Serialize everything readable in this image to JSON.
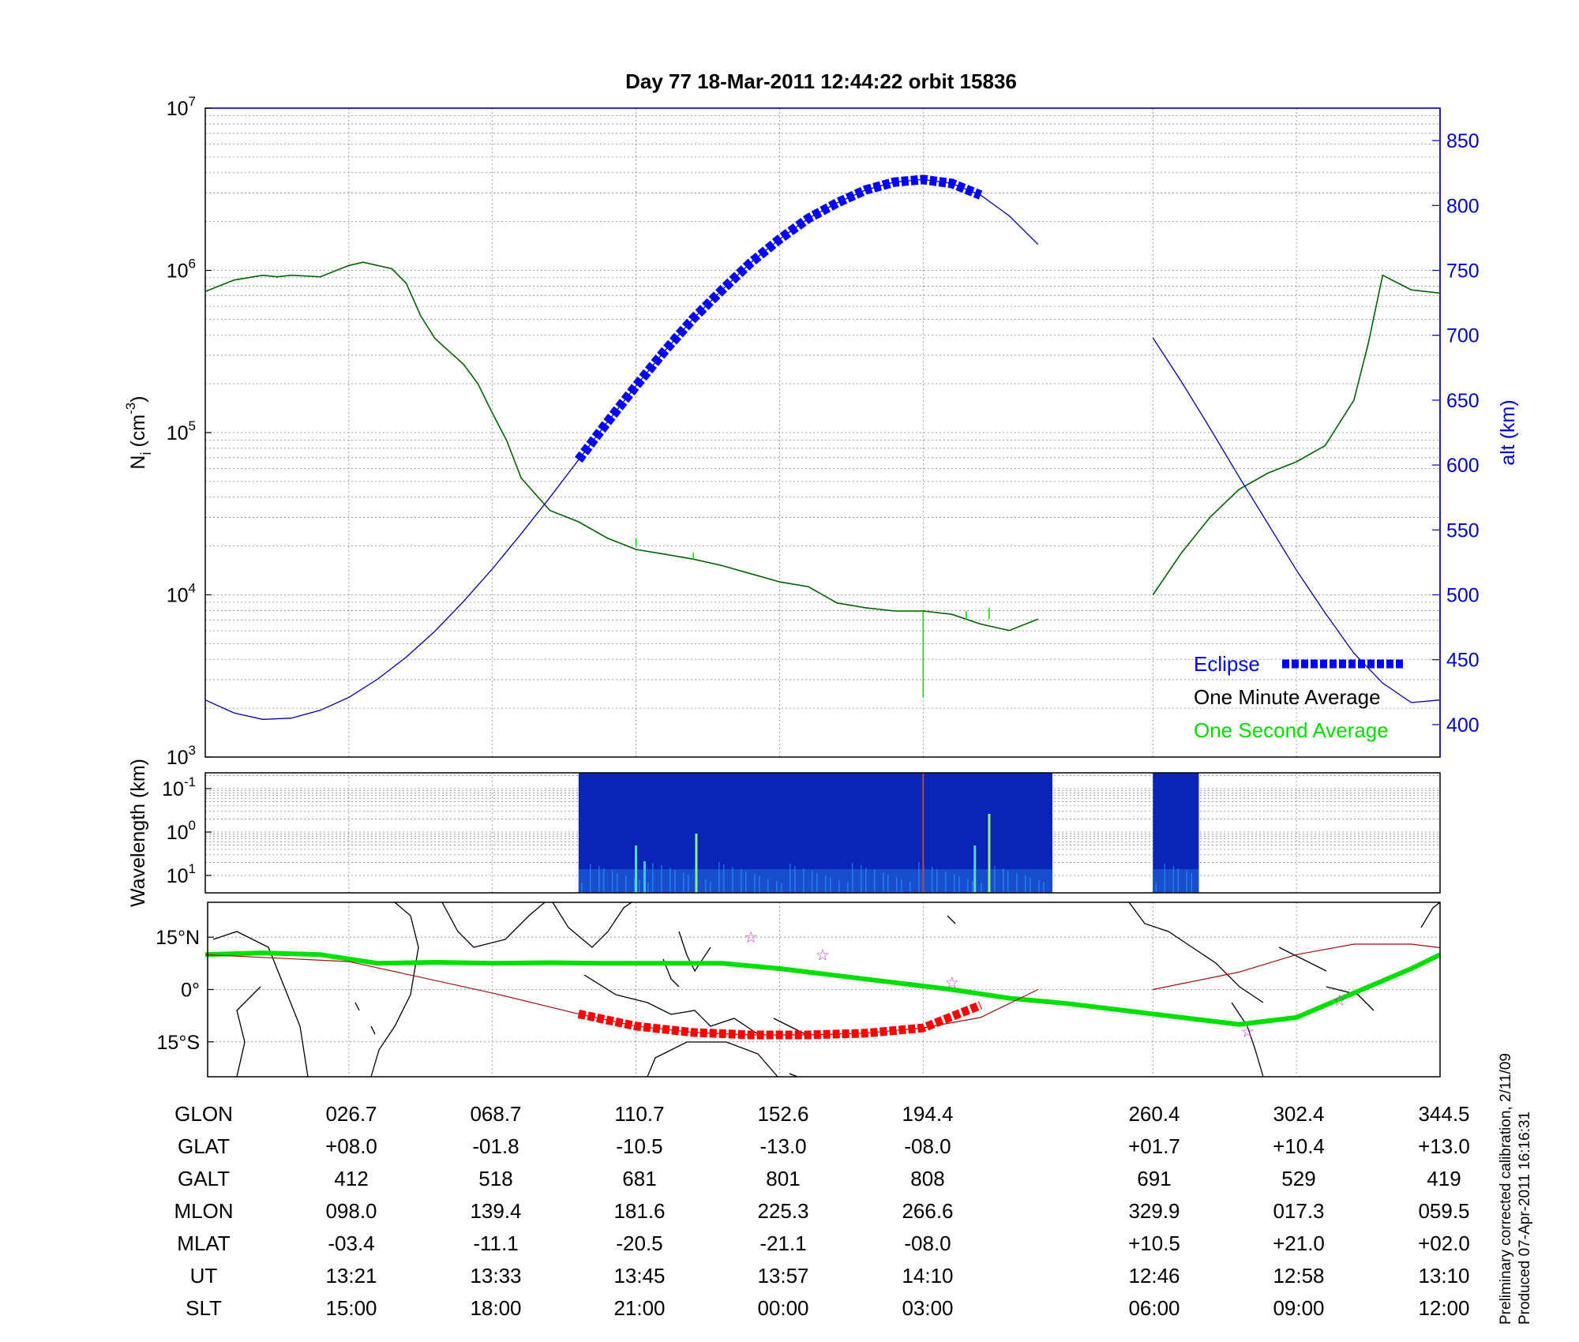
{
  "title": "Day 77  18-Mar-2011 12:44:22   orbit 15836",
  "colors": {
    "eclipse": "#0000ff",
    "minute_avg": "#006400",
    "second_avg": "#00e000",
    "altitude": "#0000aa",
    "track_eclipse": "#ff0000",
    "magnetic_equator": "#00e000",
    "star": "#cc33cc"
  },
  "chart_data": [
    {
      "type": "line",
      "ylabel": "N_i (cm^-3)",
      "ylabel_main": "N",
      "ylabel_sub": "i",
      "ylabel_unit": "(cm",
      "ylabel_exp": "-3",
      "ylabel_close": ")",
      "y_scale": "log",
      "ylim": [
        1000,
        10000000
      ],
      "y_ticks": [
        {
          "base": "10",
          "exp": "3",
          "v": 3
        },
        {
          "base": "10",
          "exp": "4",
          "v": 4
        },
        {
          "base": "10",
          "exp": "5",
          "v": 5
        },
        {
          "base": "10",
          "exp": "6",
          "v": 6
        },
        {
          "base": "10",
          "exp": "7",
          "v": 7
        }
      ],
      "y2label": "alt (km)",
      "y2lim": [
        375,
        875
      ],
      "y2_ticks": [
        "400",
        "450",
        "500",
        "550",
        "600",
        "650",
        "700",
        "750",
        "800",
        "850"
      ],
      "xlim": [
        0,
        43
      ],
      "x_grid": [
        5,
        10,
        15,
        20,
        25,
        33,
        38,
        43
      ],
      "grid": true,
      "legend_position": "bottom-right",
      "legend": [
        "Eclipse",
        "One Minute Average",
        "One Second Average"
      ],
      "series": [
        {
          "name": "One Minute Average",
          "x": [
            0,
            1,
            2,
            2.5,
            3,
            4,
            5,
            5.5,
            6,
            6.5,
            7,
            7.5,
            8,
            8.5,
            9,
            9.5,
            10,
            10.5,
            11,
            12,
            13,
            14,
            15,
            16,
            17,
            18,
            19,
            20,
            21,
            22,
            23,
            24,
            25,
            26,
            27,
            28,
            29
          ],
          "y": [
            5.87,
            5.94,
            5.97,
            5.96,
            5.97,
            5.96,
            6.03,
            6.05,
            6.03,
            6.01,
            5.92,
            5.72,
            5.58,
            5.5,
            5.42,
            5.3,
            5.12,
            4.95,
            4.72,
            4.52,
            4.45,
            4.35,
            4.28,
            4.25,
            4.22,
            4.18,
            4.13,
            4.08,
            4.05,
            3.95,
            3.92,
            3.9,
            3.9,
            3.88,
            3.82,
            3.78,
            3.85
          ]
        },
        {
          "name": "One Minute Average",
          "x": [
            33,
            34,
            35,
            36,
            37,
            38,
            39,
            40,
            40.5,
            41,
            42,
            43
          ],
          "y": [
            4.0,
            4.26,
            4.48,
            4.65,
            4.75,
            4.82,
            4.92,
            5.2,
            5.55,
            5.97,
            5.88,
            5.86
          ]
        },
        {
          "name": "Altitude",
          "axis": "y2",
          "x": [
            0,
            1,
            2,
            3,
            4,
            5,
            6,
            7,
            8,
            9,
            10,
            11,
            12,
            13,
            14,
            15,
            16,
            17,
            18,
            19,
            20,
            21,
            22,
            23,
            24,
            25,
            26,
            27,
            28,
            29
          ],
          "y": [
            419,
            409,
            404,
            405,
            411,
            421,
            435,
            452,
            472,
            495,
            520,
            547,
            575,
            604,
            633,
            661,
            688,
            713,
            735,
            756,
            774,
            790,
            802,
            812,
            818,
            820,
            817,
            808,
            792,
            770
          ]
        },
        {
          "name": "Altitude",
          "axis": "y2",
          "x": [
            33,
            34,
            35,
            36,
            37,
            38,
            39,
            40,
            41,
            42,
            43
          ],
          "y": [
            698,
            664,
            628,
            591,
            555,
            519,
            486,
            455,
            432,
            417,
            419
          ]
        },
        {
          "name": "Eclipse",
          "axis": "y2",
          "x": [
            13,
            14,
            15,
            16,
            17,
            18,
            19,
            20,
            21,
            22,
            23,
            24,
            25,
            26,
            27
          ],
          "y": [
            604,
            633,
            661,
            688,
            713,
            735,
            756,
            774,
            790,
            802,
            812,
            818,
            820,
            817,
            808
          ]
        }
      ]
    },
    {
      "type": "heatmap",
      "ylabel": "Wavelength (km)",
      "y_ticks": [
        {
          "base": "10",
          "exp": "-1"
        },
        {
          "base": "10",
          "exp": "0"
        },
        {
          "base": "10",
          "exp": "1"
        }
      ],
      "data_x_ranges": [
        [
          13,
          29.5
        ],
        [
          33,
          34.6
        ]
      ]
    },
    {
      "type": "line",
      "y_ticks": [
        "15°N",
        "0°",
        "15°S"
      ],
      "ylim": [
        -25,
        25
      ],
      "series": [
        {
          "name": "Magnetic Equator",
          "x": [
            0,
            2,
            4,
            6,
            8,
            10,
            12,
            14,
            18,
            20,
            22,
            24,
            26,
            28,
            30,
            34,
            36,
            38,
            40,
            42,
            43
          ],
          "y": [
            10,
            10.5,
            10,
            7.5,
            7.8,
            7.5,
            7.7,
            7.5,
            7.5,
            6,
            4,
            2,
            0,
            -2.5,
            -4,
            -8,
            -10,
            -8,
            -1,
            6,
            10
          ]
        },
        {
          "name": "Satellite Track",
          "x": [
            0,
            5,
            10,
            13,
            15,
            17,
            19,
            21,
            23,
            25,
            27,
            29
          ],
          "y": [
            10,
            8,
            -1,
            -7,
            -10.5,
            -12.3,
            -13,
            -13,
            -12.5,
            -11,
            -8,
            0
          ]
        },
        {
          "name": "Satellite Track",
          "x": [
            33,
            36,
            38,
            40,
            42,
            43
          ],
          "y": [
            0,
            5,
            10,
            13,
            13,
            12
          ]
        },
        {
          "name": "Eclipse Track",
          "x": [
            13,
            15,
            17,
            19,
            21,
            23,
            25,
            27
          ],
          "y": [
            -7,
            -10.5,
            -12.3,
            -13,
            -13,
            -12.5,
            -11,
            -4.5
          ]
        }
      ],
      "stars": [
        {
          "x": 19,
          "y": 15
        },
        {
          "x": 21.5,
          "y": 10
        },
        {
          "x": 26,
          "y": 2
        },
        {
          "x": 36.3,
          "y": -12
        },
        {
          "x": 39.5,
          "y": -3
        }
      ]
    }
  ],
  "table": {
    "rows": [
      {
        "label": "GLON",
        "values": [
          "026.7",
          "068.7",
          "110.7",
          "152.6",
          "194.4",
          "260.4",
          "302.4",
          "344.5"
        ]
      },
      {
        "label": "GLAT",
        "values": [
          "+08.0",
          "-01.8",
          "-10.5",
          "-13.0",
          "-08.0",
          "+01.7",
          "+10.4",
          "+13.0"
        ]
      },
      {
        "label": "GALT",
        "values": [
          "412",
          "518",
          "681",
          "801",
          "808",
          "691",
          "529",
          "419"
        ]
      },
      {
        "label": "MLON",
        "values": [
          "098.0",
          "139.4",
          "181.6",
          "225.3",
          "266.6",
          "329.9",
          "017.3",
          "059.5"
        ]
      },
      {
        "label": "MLAT",
        "values": [
          "-03.4",
          "-11.1",
          "-20.5",
          "-21.1",
          "-08.0",
          "+10.5",
          "+21.0",
          "+02.0"
        ]
      },
      {
        "label": "UT",
        "values": [
          "13:21",
          "13:33",
          "13:45",
          "13:57",
          "14:10",
          "12:46",
          "12:58",
          "13:10"
        ]
      },
      {
        "label": "SLT",
        "values": [
          "15:00",
          "18:00",
          "21:00",
          "00:00",
          "03:00",
          "06:00",
          "09:00",
          "12:00"
        ]
      }
    ]
  },
  "footer": {
    "line1": "Preliminary corrected calibration, 2/11/09",
    "line2": "Produced 07-Apr-2011 16:16:31"
  }
}
